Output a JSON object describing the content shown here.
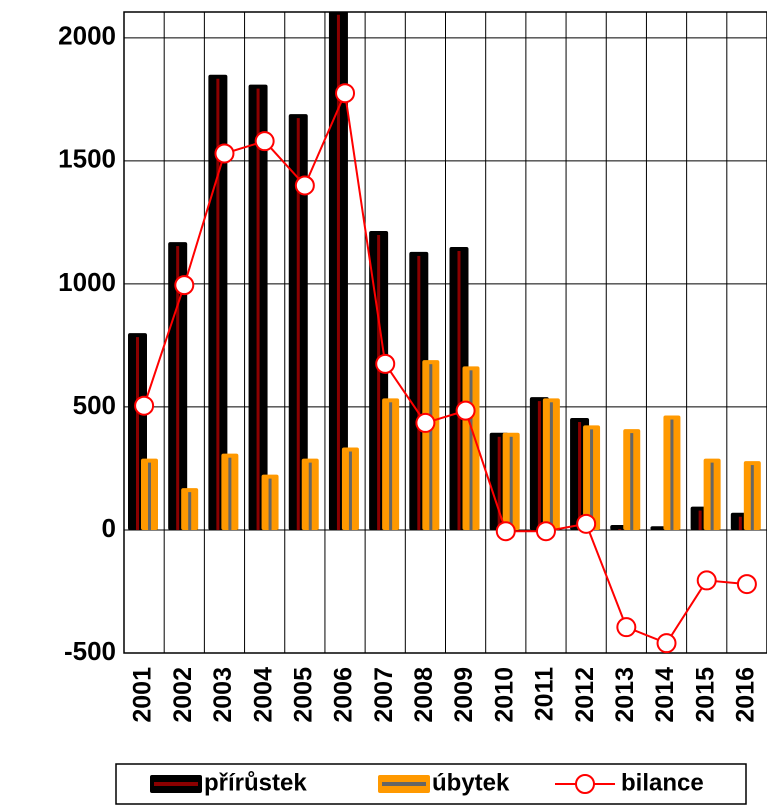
{
  "chart_data": {
    "type": "bar_line",
    "categories": [
      "2001",
      "2002",
      "2003",
      "2004",
      "2005",
      "2006",
      "2007",
      "2008",
      "2009",
      "2010",
      "2011",
      "2012",
      "2013",
      "2014",
      "2015",
      "2016"
    ],
    "series": [
      {
        "name": "přírůstek",
        "type": "bar",
        "color": "#000000",
        "accent": "#8b0000",
        "values": [
          800,
          1170,
          1850,
          1810,
          1690,
          2110,
          1215,
          1130,
          1150,
          395,
          540,
          455,
          20,
          15,
          95,
          70
        ]
      },
      {
        "name": "úbytek",
        "type": "bar",
        "color": "#ff9900",
        "accent": "#666666",
        "values": [
          290,
          170,
          310,
          225,
          290,
          335,
          535,
          690,
          665,
          395,
          535,
          425,
          410,
          465,
          290,
          280
        ]
      },
      {
        "name": "bilance",
        "type": "line",
        "color": "#ff0000",
        "values": [
          505,
          995,
          1530,
          1580,
          1400,
          1775,
          675,
          435,
          485,
          -5,
          -5,
          25,
          -395,
          -460,
          -205,
          -220
        ]
      }
    ],
    "ylim": [
      -500,
      2105
    ],
    "yticks": [
      -500,
      0,
      500,
      1000,
      1500,
      2000
    ],
    "grid": true
  }
}
